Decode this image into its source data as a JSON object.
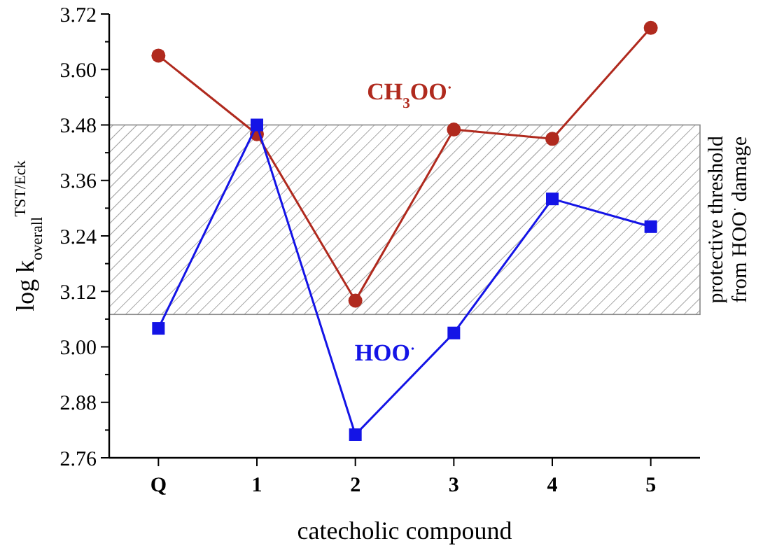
{
  "chart_data": {
    "type": "line",
    "xlabel": "catecholic compound",
    "ylabel": "log k$_{overall}$$^{TST/Eck}$",
    "categories": [
      "Q",
      "1",
      "2",
      "3",
      "4",
      "5"
    ],
    "series": [
      {
        "name": "CH$_{3}$OO$^{·}$",
        "color": "#b02a1e",
        "marker": "circle",
        "values": [
          3.63,
          3.46,
          3.1,
          3.47,
          3.45,
          3.69
        ]
      },
      {
        "name": "HOO$^{·}$",
        "color": "#1414e6",
        "marker": "square",
        "values": [
          3.04,
          3.48,
          2.81,
          3.03,
          3.32,
          3.26
        ]
      }
    ],
    "bands": [
      {
        "axis": "y",
        "from": 3.07,
        "to": 3.48,
        "label": "protective threshold from HOO$^{·}$ damage",
        "color": "#888888"
      }
    ],
    "ylim": [
      2.76,
      3.72
    ],
    "yticks": [
      2.76,
      2.88,
      {
        "value": 3,
        "label": "3.00"
      },
      3.12,
      3.24,
      3.36,
      3.48,
      {
        "value": 3.6,
        "label": "3.60"
      },
      3.72
    ],
    "grid": false
  }
}
